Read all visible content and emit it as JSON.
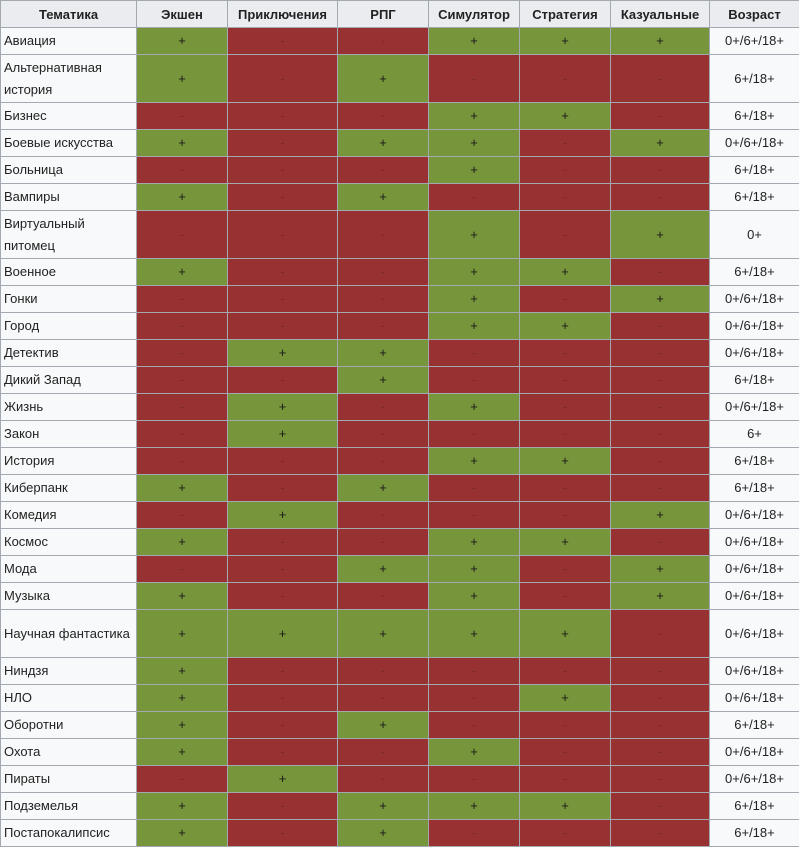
{
  "table": {
    "headers": [
      "Тематика",
      "Экшен",
      "Приключения",
      "РПГ",
      "Симулятор",
      "Стратегия",
      "Казуальные",
      "Возраст"
    ],
    "rows": [
      {
        "theme": "Авиация",
        "cells": [
          "+",
          "-",
          "-",
          "+",
          "+",
          "+"
        ],
        "age": "0+/6+/18+"
      },
      {
        "theme": "Альтернативная история",
        "cells": [
          "+",
          "-",
          "+",
          "-",
          "-",
          "-"
        ],
        "age": "6+/18+"
      },
      {
        "theme": "Бизнес",
        "cells": [
          "-",
          "-",
          "-",
          "+",
          "+",
          "-"
        ],
        "age": "6+/18+"
      },
      {
        "theme": "Боевые искусства",
        "cells": [
          "+",
          "-",
          "+",
          "+",
          "-",
          "+"
        ],
        "age": "0+/6+/18+"
      },
      {
        "theme": "Больница",
        "cells": [
          "-",
          "-",
          "-",
          "+",
          "-",
          "-"
        ],
        "age": "6+/18+"
      },
      {
        "theme": "Вампиры",
        "cells": [
          "+",
          "-",
          "+",
          "-",
          "-",
          "-"
        ],
        "age": "6+/18+"
      },
      {
        "theme": "Виртуальный питомец",
        "cells": [
          "-",
          "-",
          "-",
          "+",
          "-",
          "+"
        ],
        "age": "0+"
      },
      {
        "theme": "Военное",
        "cells": [
          "+",
          "-",
          "-",
          "+",
          "+",
          "-"
        ],
        "age": "6+/18+"
      },
      {
        "theme": "Гонки",
        "cells": [
          "-",
          "-",
          "-",
          "+",
          "-",
          "+"
        ],
        "age": "0+/6+/18+"
      },
      {
        "theme": "Город",
        "cells": [
          "-",
          "-",
          "-",
          "+",
          "+",
          "-"
        ],
        "age": "0+/6+/18+"
      },
      {
        "theme": "Детектив",
        "cells": [
          "-",
          "+",
          "+",
          "-",
          "-",
          "-"
        ],
        "age": "0+/6+/18+"
      },
      {
        "theme": "Дикий Запад",
        "cells": [
          "-",
          "-",
          "+",
          "-",
          "-",
          "-"
        ],
        "age": "6+/18+"
      },
      {
        "theme": "Жизнь",
        "cells": [
          "-",
          "+",
          "-",
          "+",
          "-",
          "-"
        ],
        "age": "0+/6+/18+"
      },
      {
        "theme": "Закон",
        "cells": [
          "-",
          "+",
          "-",
          "-",
          "-",
          "-"
        ],
        "age": "6+"
      },
      {
        "theme": "История",
        "cells": [
          "-",
          "-",
          "-",
          "+",
          "+",
          "-"
        ],
        "age": "6+/18+"
      },
      {
        "theme": "Киберпанк",
        "cells": [
          "+",
          "-",
          "+",
          "-",
          "-",
          "-"
        ],
        "age": "6+/18+"
      },
      {
        "theme": "Комедия",
        "cells": [
          "-",
          "+",
          "-",
          "-",
          "-",
          "+"
        ],
        "age": "0+/6+/18+"
      },
      {
        "theme": "Космос",
        "cells": [
          "+",
          "-",
          "-",
          "+",
          "+",
          "-"
        ],
        "age": "0+/6+/18+"
      },
      {
        "theme": "Мода",
        "cells": [
          "-",
          "-",
          "+",
          "+",
          "-",
          "+"
        ],
        "age": "0+/6+/18+"
      },
      {
        "theme": "Музыка",
        "cells": [
          "+",
          "-",
          "-",
          "+",
          "-",
          "+"
        ],
        "age": "0+/6+/18+"
      },
      {
        "theme": "Научная фантастика",
        "cells": [
          "+",
          "+",
          "+",
          "+",
          "+",
          "-"
        ],
        "age": "0+/6+/18+"
      },
      {
        "theme": "Ниндзя",
        "cells": [
          "+",
          "-",
          "-",
          "-",
          "-",
          "-"
        ],
        "age": "0+/6+/18+"
      },
      {
        "theme": "НЛО",
        "cells": [
          "+",
          "-",
          "-",
          "-",
          "+",
          "-"
        ],
        "age": "0+/6+/18+"
      },
      {
        "theme": "Оборотни",
        "cells": [
          "+",
          "-",
          "+",
          "-",
          "-",
          "-"
        ],
        "age": "6+/18+"
      },
      {
        "theme": "Охота",
        "cells": [
          "+",
          "-",
          "-",
          "+",
          "-",
          "-"
        ],
        "age": "0+/6+/18+"
      },
      {
        "theme": "Пираты",
        "cells": [
          "-",
          "+",
          "-",
          "-",
          "-",
          "-"
        ],
        "age": "0+/6+/18+"
      },
      {
        "theme": "Подземелья",
        "cells": [
          "+",
          "-",
          "+",
          "+",
          "+",
          "-"
        ],
        "age": "6+/18+"
      },
      {
        "theme": "Постапокалипсис",
        "cells": [
          "+",
          "-",
          "+",
          "-",
          "-",
          "-"
        ],
        "age": "6+/18+"
      }
    ]
  },
  "colors": {
    "yes_cell": "#77963b",
    "no_cell": "#983232",
    "header_bg": "#eaecf0",
    "border": "#a2a9b1"
  }
}
